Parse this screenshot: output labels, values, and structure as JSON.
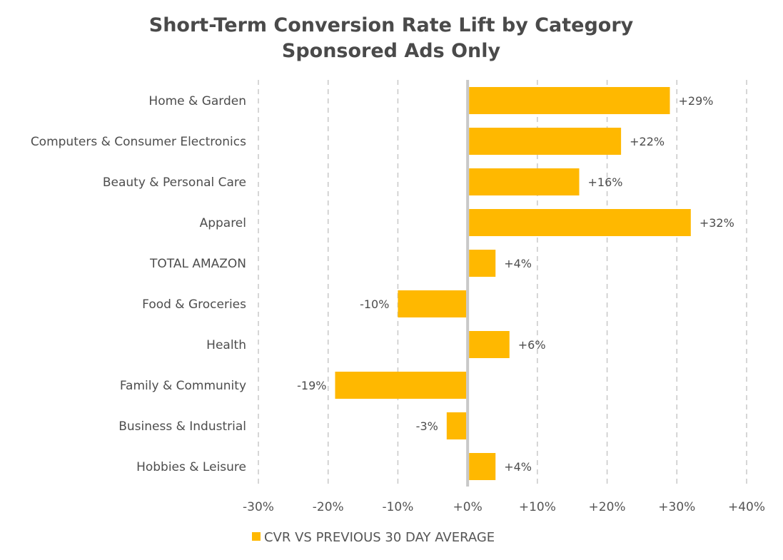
{
  "chart_data": {
    "type": "bar",
    "orientation": "horizontal",
    "title": "Short-Term Conversion Rate Lift by Category",
    "subtitle": "Sponsored Ads Only",
    "categories": [
      "Home & Garden",
      "Computers & Consumer Electronics",
      "Beauty & Personal Care",
      "Apparel",
      "TOTAL AMAZON",
      "Food & Groceries",
      "Health",
      "Family & Community",
      "Business & Industrial",
      "Hobbies & Leisure"
    ],
    "series": [
      {
        "name": "CVR VS PREVIOUS 30 DAY AVERAGE",
        "color": "#ffb800",
        "values": [
          29,
          22,
          16,
          32,
          4,
          -10,
          6,
          -19,
          -3,
          4
        ],
        "data_labels": [
          "+29%",
          "+22%",
          "+16%",
          "+32%",
          "+4%",
          "-10%",
          "+6%",
          "-19%",
          "-3%",
          "+4%"
        ]
      }
    ],
    "xlim": [
      -30,
      40
    ],
    "x_ticks": [
      -30,
      -20,
      -10,
      0,
      10,
      20,
      30,
      40
    ],
    "x_tick_labels": [
      "-30%",
      "-20%",
      "-10%",
      "+0%",
      "+10%",
      "+20%",
      "+30%",
      "+40%"
    ],
    "grid": true,
    "legend_position": "bottom"
  }
}
